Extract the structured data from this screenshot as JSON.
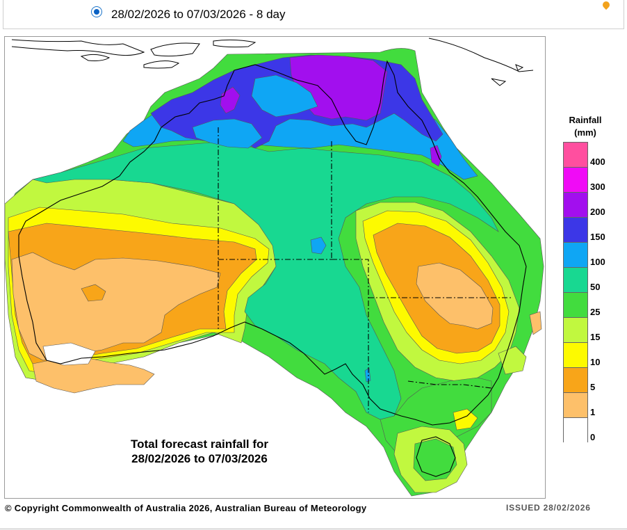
{
  "selection": {
    "label": "28/02/2026 to 07/03/2026 - 8 day",
    "checked": true
  },
  "map": {
    "title_line1": "Total forecast rainfall for",
    "title_line2": "28/02/2026 to 07/03/2026",
    "subject": "Australia",
    "colors": {
      "0": "#ffffff",
      "1": "#fdc06a",
      "5": "#f8a519",
      "10": "#fdfa00",
      "15": "#c1f83f",
      "25": "#42dc3e",
      "50": "#18d891",
      "100": "#0fa6f4",
      "150": "#3c37e7",
      "200": "#a20fee",
      "300": "#f00bf6",
      "400": "#ff4f9f"
    }
  },
  "legend": {
    "title_line1": "Rainfall",
    "title_line2": "(mm)",
    "levels": [
      {
        "label": "400",
        "color": "#ff4f9f"
      },
      {
        "label": "300",
        "color": "#f00bf6"
      },
      {
        "label": "200",
        "color": "#a20fee"
      },
      {
        "label": "150",
        "color": "#3c37e7"
      },
      {
        "label": "100",
        "color": "#0fa6f4"
      },
      {
        "label": "50",
        "color": "#18d891"
      },
      {
        "label": "25",
        "color": "#42dc3e"
      },
      {
        "label": "15",
        "color": "#c1f83f"
      },
      {
        "label": "10",
        "color": "#fdfa00"
      },
      {
        "label": "5",
        "color": "#f8a519"
      },
      {
        "label": "1",
        "color": "#fdc06a"
      },
      {
        "label": "0",
        "color": "#ffffff"
      }
    ]
  },
  "footer": {
    "copyright": "© Copyright Commonwealth of Australia 2026, Australian Bureau of Meteorology",
    "issued": "ISSUED 28/02/2026"
  }
}
